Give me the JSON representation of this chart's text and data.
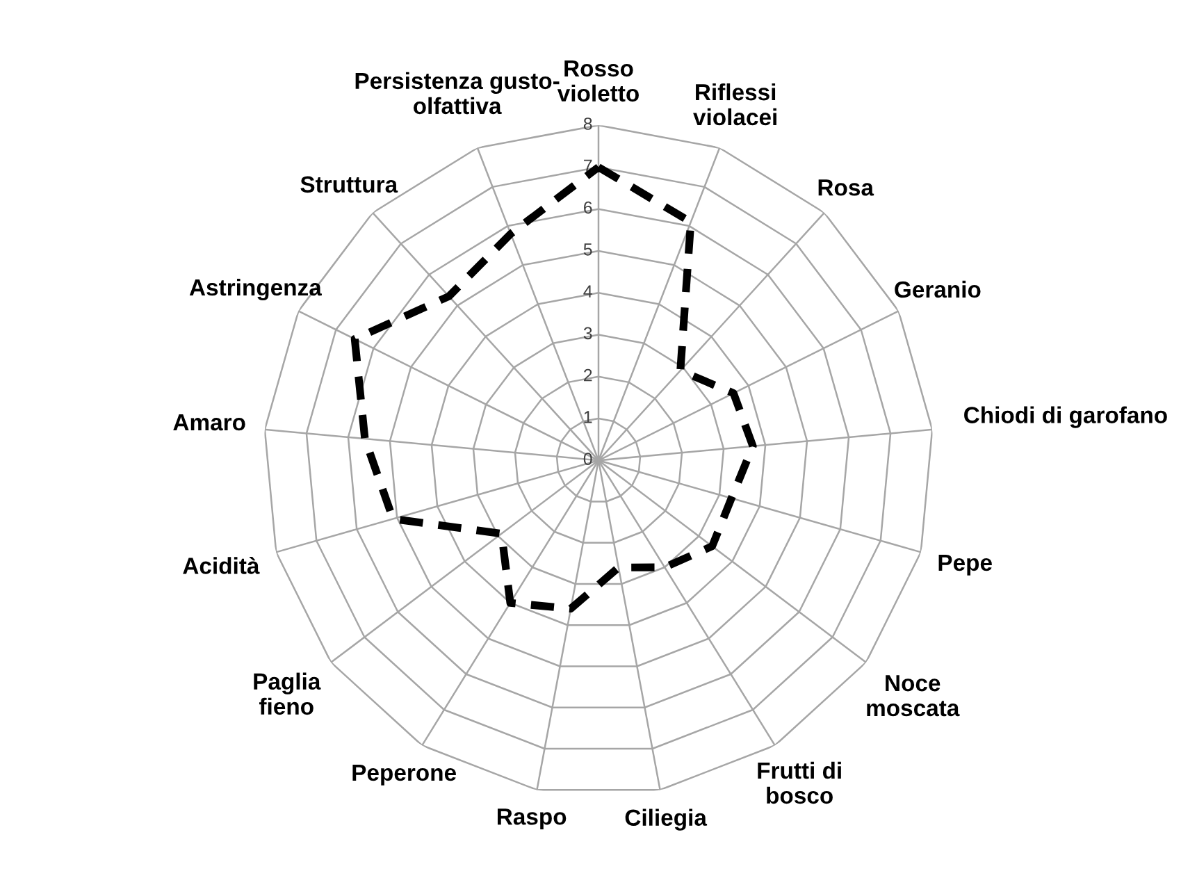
{
  "chart_data": {
    "type": "radar",
    "categories": [
      "Rosso\nvioletto",
      "Riflessi\nviolacei",
      "Rosa",
      "Geranio",
      "Chiodi di garofano",
      "Pepe",
      "Noce\nmoscata",
      "Frutti di\nbosco",
      "Ciliegia",
      "Raspo",
      "Peperone",
      "Paglia\nfieno",
      "Acidità",
      "Amaro",
      "Astringenza",
      "Struttura",
      "Persistenza gusto-\nolfattiva"
    ],
    "series": [
      {
        "color": "#000000",
        "values": [
          7,
          6.1,
          2.9,
          3.6,
          3.7,
          3.3,
          3.4,
          3.0,
          2.6,
          3.6,
          4.0,
          2.9,
          5.1,
          5.6,
          6.5,
          5.3,
          5.8
        ]
      }
    ],
    "ylim": [
      0,
      8
    ],
    "yticks": [
      0,
      1,
      2,
      3,
      4,
      5,
      6,
      7,
      8
    ],
    "grid": true,
    "line_style": "dashed",
    "marker": "none"
  }
}
